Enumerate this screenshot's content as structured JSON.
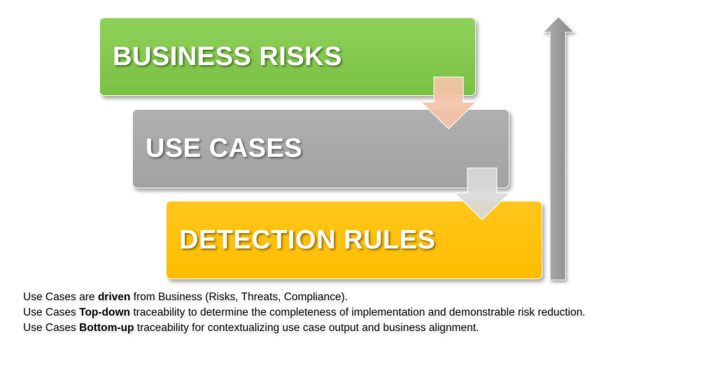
{
  "boxes": {
    "business_risks": "BUSINESS RISKS",
    "use_cases": "USE CASES",
    "detection_rules": "DETECTION RULES"
  },
  "colors": {
    "business_risks": "#7ac142",
    "use_cases": "#a6a6a6",
    "detection_rules": "#ffbf00",
    "down_arrow_1": "#f4c3a8",
    "down_arrow_2": "#d9d9d9",
    "up_arrow": "#9e9e9e"
  },
  "icons": {
    "down_arrow_1": "arrow-down-icon",
    "down_arrow_2": "arrow-down-icon",
    "up_arrow": "arrow-up-icon"
  },
  "caption": {
    "line1": {
      "prefix": "Use Cases are ",
      "emphasis": "driven",
      "suffix": " from Business (Risks, Threats, Compliance)."
    },
    "line2": {
      "prefix": "Use Cases ",
      "emphasis": "Top-down",
      "suffix": " traceability to determine the completeness of implementation and demonstrable risk reduction."
    },
    "line3": {
      "prefix": "Use Cases ",
      "emphasis": "Bottom-up",
      "suffix": " traceability for contextualizing use case output and business alignment."
    }
  }
}
